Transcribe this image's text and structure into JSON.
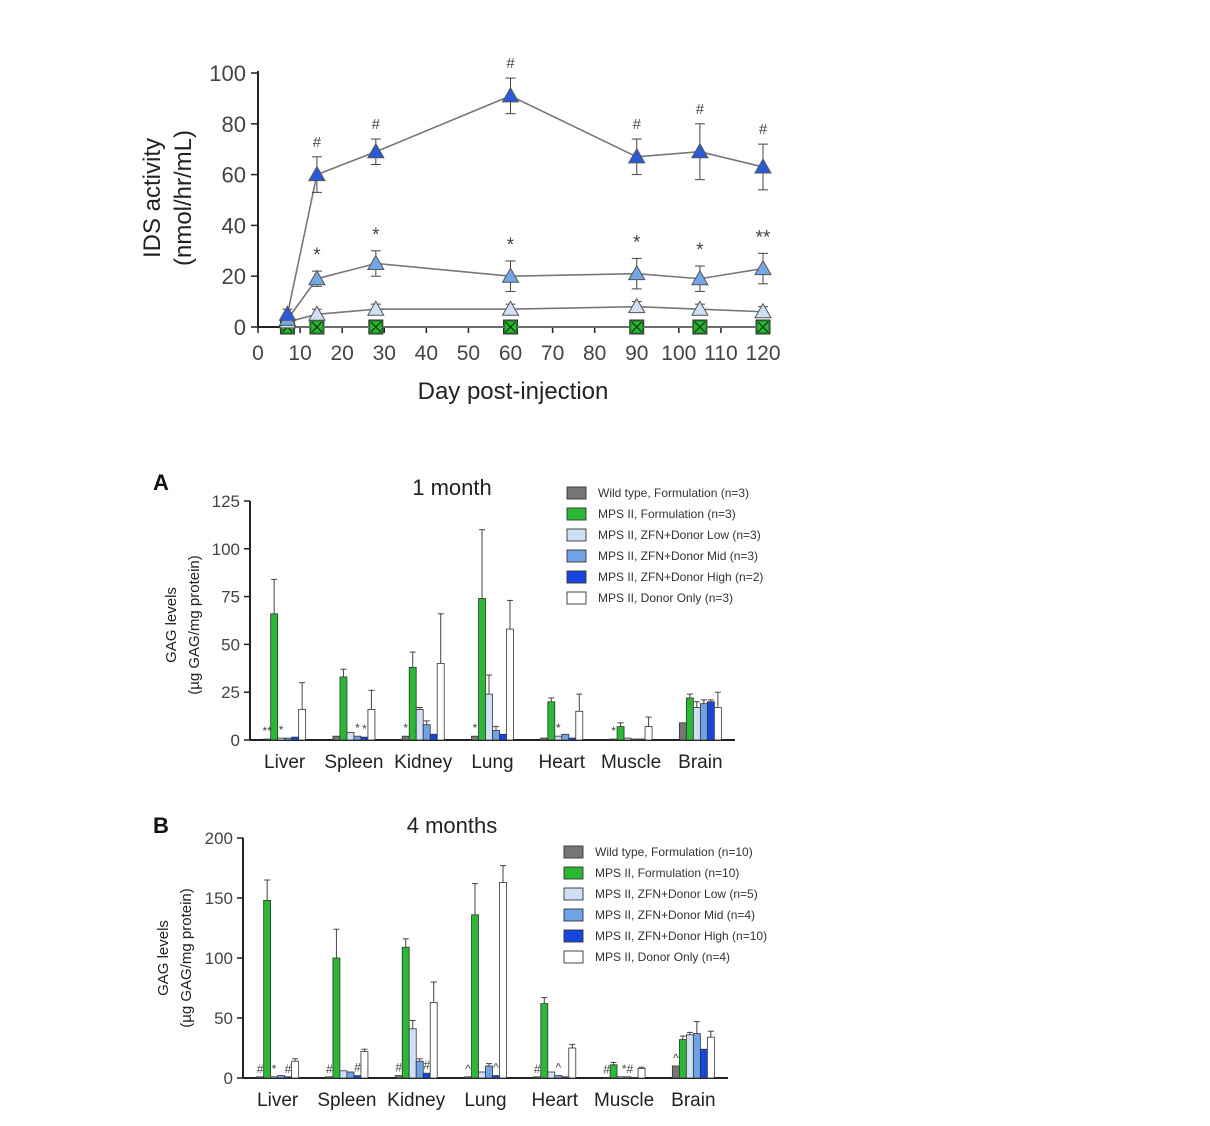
{
  "chart_data": [
    {
      "type": "line",
      "xlabel": "Day post-injection",
      "ylabel_line1": "IDS activity",
      "ylabel_line2": "(nmol/hr/mL)",
      "xlim": [
        0,
        120
      ],
      "ylim": [
        0,
        100
      ],
      "xticks": [
        0,
        10,
        20,
        30,
        40,
        50,
        60,
        70,
        80,
        90,
        100,
        110,
        120
      ],
      "yticks": [
        0,
        20,
        40,
        60,
        80,
        100
      ],
      "series": [
        {
          "color": "#2a5ad8",
          "marker": "triangle",
          "x": [
            7,
            14,
            28,
            60,
            90,
            105,
            120
          ],
          "y": [
            5,
            60,
            69,
            91,
            67,
            69,
            63
          ],
          "err": [
            2,
            7,
            5,
            7,
            7,
            11,
            9
          ],
          "annotations": [
            "",
            "#",
            "#",
            "#",
            "#",
            "#",
            "#"
          ]
        },
        {
          "color": "#73a6e4",
          "marker": "triangle",
          "x": [
            7,
            14,
            28,
            60,
            90,
            105,
            120
          ],
          "y": [
            3,
            19,
            25,
            20,
            21,
            19,
            23
          ],
          "err": [
            1,
            3,
            5,
            6,
            6,
            5,
            6
          ],
          "annotations": [
            "",
            "*",
            "*",
            "*",
            "*",
            "*",
            "**"
          ]
        },
        {
          "color": "#cfe0f5",
          "marker": "triangle",
          "x": [
            7,
            14,
            28,
            60,
            90,
            105,
            120
          ],
          "y": [
            2,
            5,
            7,
            7,
            8,
            7,
            6
          ],
          "err": [
            1,
            2,
            2,
            2,
            2,
            2,
            2
          ],
          "annotations": [
            "",
            "",
            "",
            "",
            "",
            "",
            ""
          ]
        },
        {
          "color": "#666666",
          "marker": "square",
          "x": [
            7,
            14,
            28,
            60,
            90,
            105,
            120
          ],
          "y": [
            0,
            0,
            0,
            0,
            0,
            0,
            0
          ],
          "err": [
            0,
            0,
            0,
            0,
            0,
            0,
            0
          ],
          "annotations": [
            "",
            "",
            "",
            "",
            "",
            "",
            ""
          ]
        },
        {
          "color": "#2bb834",
          "marker": "x",
          "x": [
            7,
            14,
            28,
            60,
            90,
            105,
            120
          ],
          "y": [
            0,
            0,
            0,
            0,
            0,
            0,
            0
          ],
          "err": [
            0,
            0,
            0,
            0,
            0,
            0,
            0
          ],
          "annotations": [
            "",
            "",
            "",
            "",
            "",
            "",
            ""
          ]
        }
      ]
    },
    {
      "type": "bar",
      "panel": "A",
      "title": "1 month",
      "ylabel_line1": "GAG levels",
      "ylabel_line2": "(µg GAG/mg protein)",
      "ylim": [
        0,
        125
      ],
      "yticks": [
        0,
        25,
        50,
        75,
        100,
        125
      ],
      "categories": [
        "Liver",
        "Spleen",
        "Kidney",
        "Lung",
        "Heart",
        "Muscle",
        "Brain"
      ],
      "series": [
        {
          "name": "Wild type, Formulation (n=3)",
          "color": "#777777",
          "values": [
            0.5,
            2,
            2,
            2,
            1,
            0.5,
            9
          ],
          "err": [
            0,
            0,
            0,
            0,
            0,
            0,
            0
          ]
        },
        {
          "name": "MPS II, Formulation (n=3)",
          "color": "#2bb834",
          "values": [
            66,
            33,
            38,
            74,
            20,
            7,
            22
          ],
          "err": [
            18,
            4,
            8,
            36,
            2,
            2,
            2
          ]
        },
        {
          "name": "MPS II, ZFN+Donor Low (n=3)",
          "color": "#cfe0f5",
          "values": [
            1,
            4,
            16,
            24,
            2,
            1,
            17
          ],
          "err": [
            0,
            0,
            1,
            10,
            0,
            0,
            3
          ]
        },
        {
          "name": "MPS II, ZFN+Donor Mid (n=3)",
          "color": "#6fa3e6",
          "values": [
            1,
            2,
            8,
            5,
            3,
            0.5,
            19
          ],
          "err": [
            0,
            0,
            2,
            2,
            0,
            0,
            2
          ]
        },
        {
          "name": "MPS II, ZFN+Donor High (n=2)",
          "color": "#1646de",
          "values": [
            1.5,
            1.5,
            3,
            3,
            1,
            0.5,
            20
          ],
          "err": [
            0,
            0,
            0,
            0,
            0,
            0,
            1
          ]
        },
        {
          "name": "MPS II, Donor Only (n=3)",
          "color": "#ffffff",
          "values": [
            16,
            16,
            40,
            58,
            15,
            7,
            17
          ],
          "err": [
            14,
            10,
            26,
            15,
            9,
            5,
            8
          ]
        }
      ],
      "annotations": [
        {
          "category": 0,
          "series": 0,
          "text": "**"
        },
        {
          "category": 0,
          "series": 2,
          "text": "*"
        },
        {
          "category": 1,
          "series": 3,
          "text": "*"
        },
        {
          "category": 1,
          "series": 4,
          "text": "*"
        },
        {
          "category": 2,
          "series": 0,
          "text": "*"
        },
        {
          "category": 3,
          "series": 0,
          "text": "*"
        },
        {
          "category": 4,
          "series": 2,
          "text": "*"
        },
        {
          "category": 5,
          "series": 0,
          "text": "*"
        }
      ]
    },
    {
      "type": "bar",
      "panel": "B",
      "title": "4 months",
      "ylabel_line1": "GAG levels",
      "ylabel_line2": "(µg GAG/mg protein)",
      "ylim": [
        0,
        200
      ],
      "yticks": [
        0,
        50,
        100,
        150,
        200
      ],
      "categories": [
        "Liver",
        "Spleen",
        "Kidney",
        "Lung",
        "Heart",
        "Muscle",
        "Brain"
      ],
      "series": [
        {
          "name": "Wild type, Formulation (n=10)",
          "color": "#777777",
          "values": [
            1,
            1,
            2,
            1,
            1,
            0.5,
            10
          ],
          "err": [
            0,
            0,
            0,
            0,
            0,
            0,
            0
          ]
        },
        {
          "name": "MPS II, Formulation (n=10)",
          "color": "#2bb834",
          "values": [
            148,
            100,
            109,
            136,
            62,
            11,
            32
          ],
          "err": [
            17,
            24,
            7,
            26,
            5,
            2,
            3
          ]
        },
        {
          "name": "MPS II, ZFN+Donor Low (n=5)",
          "color": "#cfe0f5",
          "values": [
            1,
            6,
            41,
            5,
            5,
            1,
            36
          ],
          "err": [
            0,
            0,
            7,
            0,
            0,
            0,
            2
          ]
        },
        {
          "name": "MPS II, ZFN+Donor Mid (n=4)",
          "color": "#6fa3e6",
          "values": [
            2,
            5,
            14,
            10,
            2,
            1,
            37
          ],
          "err": [
            0,
            0,
            2,
            2,
            0,
            0,
            10
          ]
        },
        {
          "name": "MPS II, ZFN+Donor High (n=10)",
          "color": "#1646de",
          "values": [
            1,
            2,
            4,
            2,
            1,
            0.5,
            24
          ],
          "err": [
            0,
            0,
            0,
            0,
            0,
            0,
            0
          ]
        },
        {
          "name": "MPS II, Donor Only (n=4)",
          "color": "#ffffff",
          "values": [
            14,
            22,
            63,
            163,
            25,
            8,
            34
          ],
          "err": [
            2,
            2,
            17,
            14,
            3,
            1,
            5
          ]
        }
      ],
      "annotations": [
        {
          "category": 0,
          "series": 0,
          "text": "#"
        },
        {
          "category": 0,
          "series": 2,
          "text": "*"
        },
        {
          "category": 0,
          "series": 4,
          "text": "#"
        },
        {
          "category": 1,
          "series": 0,
          "text": "#"
        },
        {
          "category": 1,
          "series": 4,
          "text": "#"
        },
        {
          "category": 2,
          "series": 0,
          "text": "#"
        },
        {
          "category": 2,
          "series": 4,
          "text": "#"
        },
        {
          "category": 3,
          "series": 0,
          "text": "^"
        },
        {
          "category": 3,
          "series": 4,
          "text": "^"
        },
        {
          "category": 4,
          "series": 0,
          "text": "#"
        },
        {
          "category": 4,
          "series": 3,
          "text": "^"
        },
        {
          "category": 5,
          "series": 0,
          "text": "#"
        },
        {
          "category": 5,
          "series": 3,
          "text": "*#"
        },
        {
          "category": 6,
          "series": 0,
          "text": "^"
        }
      ]
    }
  ]
}
